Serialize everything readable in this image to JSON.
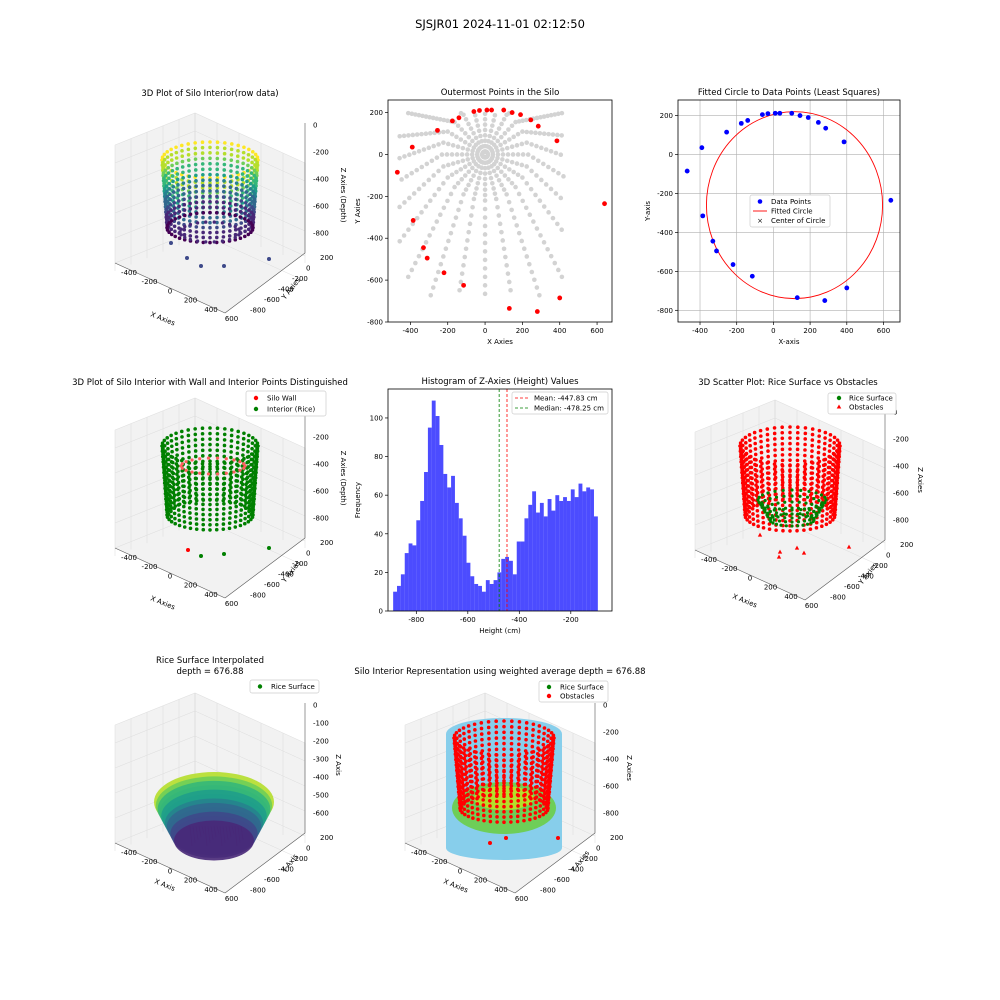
{
  "suptitle": "SJSJR01 2024-11-01 02:12:50",
  "panels": {
    "p1": {
      "title": "3D Plot of Silo Interior(row data)",
      "xlabel": "X Axies",
      "ylabel": "Y Axies",
      "zlabel": "Z Axies (Depth)"
    },
    "p4": {
      "title": "3D Plot of Silo Interior with Wall and Interior Points Distinguished",
      "xlabel": "X Axies",
      "ylabel": "Y Axies",
      "zlabel": "Z Axies (Depth)",
      "legend": [
        "Silo Wall",
        "Interior (Rice)"
      ]
    },
    "p6": {
      "title": "3D Scatter Plot: Rice Surface vs Obstacles",
      "xlabel": "X Axies",
      "ylabel": "Y Axies",
      "zlabel": "Z Axies",
      "legend": [
        "Rice Surface",
        "Obstacles"
      ]
    },
    "p7": {
      "title_line1": "Rice Surface Interpolated",
      "title_line2": "depth = 676.88",
      "xlabel": "X Axis",
      "ylabel": "Y Axis",
      "zlabel": "Z Axis",
      "legend": [
        "Rice Surface"
      ]
    },
    "p8": {
      "title": "Silo Interior Representation using weighted average depth = 676.88",
      "xlabel": "X Axies",
      "ylabel": "Y Axies",
      "zlabel": "Z Axies",
      "legend": [
        "Rice Surface",
        "Obstacles"
      ]
    }
  },
  "three_d_ticks": {
    "x": [
      "-400",
      "-200",
      "0",
      "200",
      "400",
      "600"
    ],
    "y": [
      "200",
      "0",
      "-200",
      "-400",
      "-600",
      "-800"
    ],
    "z_a": [
      "0",
      "-200",
      "-400",
      "-600",
      "-800"
    ],
    "z_b": [
      "0",
      "-100",
      "-200",
      "-300",
      "-400",
      "-500",
      "-600"
    ]
  },
  "colors": {
    "wall": "#ff0000",
    "rice": "#008000",
    "hist": "#0000ff",
    "gray": "#d3d3d3",
    "silo": "#87ceeb"
  },
  "chart_data": [
    {
      "type": "scatter",
      "title": "Outermost Points in the Silo",
      "xlabel": "X Axies",
      "ylabel": "Y Axies",
      "xlim": [
        -520,
        680
      ],
      "ylim": [
        -800,
        260
      ],
      "xticks": [
        -400,
        -200,
        0,
        200,
        400,
        600
      ],
      "yticks": [
        -800,
        -600,
        -400,
        -200,
        0,
        200
      ],
      "series": [
        {
          "color": "#ff0000",
          "points": [
            [
              -470,
              -85
            ],
            [
              -390,
              35
            ],
            [
              -385,
              -315
            ],
            [
              -330,
              -445
            ],
            [
              -310,
              -495
            ],
            [
              -255,
              115
            ],
            [
              -220,
              -565
            ],
            [
              -175,
              160
            ],
            [
              -140,
              175
            ],
            [
              -115,
              -625
            ],
            [
              -60,
              205
            ],
            [
              -30,
              210
            ],
            [
              10,
              212
            ],
            [
              35,
              212
            ],
            [
              100,
              212
            ],
            [
              145,
              200
            ],
            [
              190,
              190
            ],
            [
              245,
              165
            ],
            [
              285,
              135
            ],
            [
              385,
              65
            ],
            [
              400,
              -685
            ],
            [
              280,
              -750
            ],
            [
              130,
              -735
            ],
            [
              640,
              -235
            ]
          ]
        }
      ]
    },
    {
      "type": "scatter",
      "title": "Fitted Circle to Data Points (Least Squares)",
      "xlabel": "X-axis",
      "ylabel": "Y-axis",
      "xlim": [
        -520,
        690
      ],
      "ylim": [
        -860,
        280
      ],
      "xticks": [
        -400,
        -200,
        0,
        200,
        400,
        600
      ],
      "yticks": [
        -800,
        -600,
        -400,
        -200,
        0,
        200
      ],
      "legend": [
        "Data Points",
        "Fitted Circle",
        "Center of Circle"
      ],
      "circle": {
        "cx": 115,
        "cy": -260,
        "r": 480
      },
      "series": [
        {
          "name": "Data Points",
          "color": "#0000ff",
          "points": [
            [
              -470,
              -85
            ],
            [
              -390,
              35
            ],
            [
              -385,
              -315
            ],
            [
              -330,
              -445
            ],
            [
              -310,
              -495
            ],
            [
              -255,
              115
            ],
            [
              -220,
              -565
            ],
            [
              -175,
              160
            ],
            [
              -140,
              175
            ],
            [
              -115,
              -625
            ],
            [
              -60,
              205
            ],
            [
              -30,
              210
            ],
            [
              10,
              212
            ],
            [
              35,
              212
            ],
            [
              100,
              212
            ],
            [
              145,
              200
            ],
            [
              190,
              190
            ],
            [
              245,
              165
            ],
            [
              285,
              135
            ],
            [
              385,
              65
            ],
            [
              400,
              -685
            ],
            [
              280,
              -750
            ],
            [
              130,
              -735
            ],
            [
              640,
              -235
            ]
          ]
        }
      ]
    },
    {
      "type": "bar",
      "title": "Histogram of Z-Axies (Height) Values",
      "xlabel": "Height (cm)",
      "ylabel": "Frequency",
      "xlim": [
        -910,
        -40
      ],
      "ylim": [
        0,
        115
      ],
      "xticks": [
        -800,
        -600,
        -400,
        -200
      ],
      "yticks": [
        0,
        20,
        40,
        60,
        80,
        100
      ],
      "bin_start": -890,
      "bin_width": 15,
      "values": [
        10,
        13,
        19,
        30,
        35,
        34,
        47,
        57,
        72,
        95,
        109,
        101,
        86,
        71,
        64,
        70,
        56,
        48,
        39,
        25,
        18,
        14,
        13,
        10,
        16,
        14,
        16,
        20,
        27,
        28,
        26,
        19,
        36,
        36,
        48,
        55,
        62,
        51,
        56,
        49,
        58,
        52,
        60,
        57,
        59,
        57,
        63,
        59,
        66,
        62,
        64,
        63,
        49
      ],
      "mean": -447.83,
      "median": -478.25,
      "legend": [
        "Mean: -447.83 cm",
        "Median: -478.25 cm"
      ]
    }
  ]
}
